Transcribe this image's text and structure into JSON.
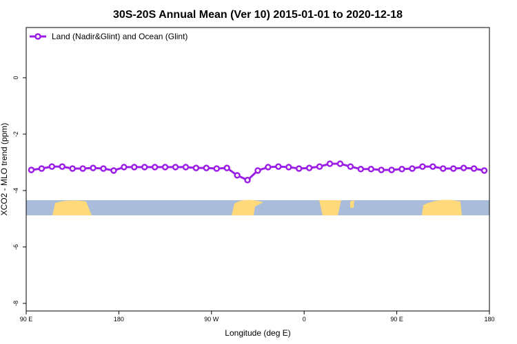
{
  "chart_data": {
    "type": "line",
    "title": "30S-20S Annual Mean (Ver 10)   2015-01-01 to 2020-12-18",
    "xlabel": "Longitude (deg E)",
    "ylabel": "XCO2 - MLO trend (ppm)",
    "x": [
      95,
      105,
      115,
      125,
      135,
      145,
      155,
      165,
      175,
      185,
      195,
      205,
      215,
      225,
      235,
      245,
      255,
      265,
      275,
      285,
      295,
      305,
      315,
      325,
      335,
      345,
      355,
      365,
      375,
      385,
      395,
      405,
      415,
      425,
      435,
      445,
      455,
      465,
      475,
      485,
      495,
      505,
      515,
      525,
      535
    ],
    "series": [
      {
        "name": "Land (Nadir&Glint) and Ocean (Glint)",
        "color": "#9b1ee6",
        "values": [
          -3.27,
          -3.22,
          -3.15,
          -3.15,
          -3.22,
          -3.22,
          -3.2,
          -3.22,
          -3.29,
          -3.17,
          -3.17,
          -3.17,
          -3.17,
          -3.17,
          -3.17,
          -3.17,
          -3.2,
          -3.2,
          -3.22,
          -3.2,
          -3.46,
          -3.63,
          -3.29,
          -3.17,
          -3.15,
          -3.17,
          -3.22,
          -3.2,
          -3.15,
          -3.05,
          -3.05,
          -3.15,
          -3.24,
          -3.24,
          -3.27,
          -3.27,
          -3.24,
          -3.22,
          -3.15,
          -3.15,
          -3.22,
          -3.22,
          -3.2,
          -3.22,
          -3.29
        ]
      }
    ],
    "xlim": [
      90,
      540
    ],
    "xticks": [
      {
        "value": 90,
        "label": "90 E"
      },
      180,
      {
        "value": 270,
        "label": "90 W"
      },
      {
        "value": 360,
        "label": "0"
      },
      {
        "value": 450,
        "label": "90 E"
      },
      {
        "value": 540,
        "label": "180"
      }
    ],
    "ylim": [
      -8.27,
      1.78
    ],
    "yticks": [
      0,
      -2,
      -4,
      -6,
      -8
    ],
    "legend": "top-left"
  }
}
